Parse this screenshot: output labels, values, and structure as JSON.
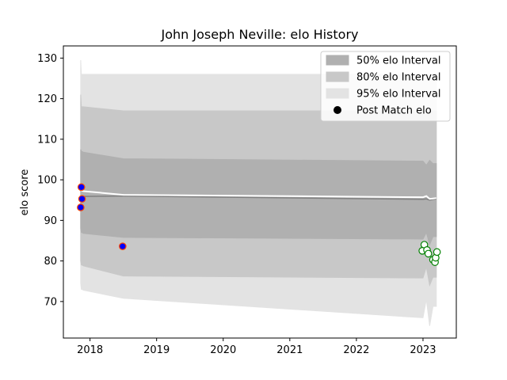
{
  "chart_data": {
    "type": "line",
    "title": "John Joseph Neville: elo History",
    "xlabel": "",
    "ylabel": "elo score",
    "xlim": [
      2017.6,
      2023.5
    ],
    "ylim": [
      61,
      133
    ],
    "x_ticks": [
      2018,
      2019,
      2020,
      2021,
      2022,
      2023
    ],
    "x_tick_labels": [
      "2018",
      "2019",
      "2020",
      "2021",
      "2022",
      "2023"
    ],
    "y_ticks": [
      70,
      80,
      90,
      100,
      110,
      120,
      130
    ],
    "y_tick_labels": [
      "70",
      "80",
      "90",
      "100",
      "110",
      "120",
      "130"
    ],
    "grid": false,
    "legend_position": "top-right",
    "legend": [
      {
        "label": "50% elo Interval",
        "kind": "band",
        "color": "#b0b0b0"
      },
      {
        "label": "80% elo Interval",
        "kind": "band",
        "color": "#c8c8c8"
      },
      {
        "label": "95% elo Interval",
        "kind": "band",
        "color": "#e3e3e3"
      },
      {
        "label": "Post Match elo",
        "kind": "marker",
        "color": "#000000"
      }
    ],
    "band_x": [
      2017.86,
      2017.87,
      2017.88,
      2017.9,
      2018.5,
      2023.0,
      2023.05,
      2023.1,
      2023.15,
      2023.2
    ],
    "band_95": {
      "upper": [
        129.5,
        126.0,
        126.0,
        126.0,
        126.0,
        126.0,
        126.0,
        126.0,
        126.0,
        126.0
      ],
      "lower": [
        74.5,
        73.0,
        73.0,
        72.8,
        70.8,
        66.0,
        70.5,
        64.0,
        68.8,
        68.8
      ]
    },
    "band_80": {
      "upper": [
        121.0,
        118.0,
        118.0,
        118.0,
        117.0,
        117.0,
        117.0,
        117.0,
        117.0,
        117.0
      ],
      "lower": [
        80.0,
        79.0,
        79.0,
        78.8,
        76.3,
        75.8,
        78.5,
        74.0,
        76.0,
        76.0
      ]
    },
    "band_50": {
      "upper": [
        107.5,
        107.0,
        107.0,
        106.8,
        105.2,
        104.6,
        103.6,
        104.8,
        104.0,
        104.0
      ],
      "lower": [
        88.0,
        87.0,
        87.0,
        86.8,
        85.8,
        85.4,
        87.0,
        84.0,
        86.0,
        86.0
      ]
    },
    "mean_line": {
      "color": "#ffffff",
      "x": [
        2017.86,
        2017.88,
        2017.9,
        2018.5,
        2023.0,
        2023.05,
        2023.1,
        2023.15,
        2023.2
      ],
      "y": [
        97.5,
        97.3,
        97.2,
        96.3,
        95.7,
        96.0,
        95.3,
        95.4,
        95.5
      ]
    },
    "median_line": {
      "color": "#808080",
      "x": [
        2017.86,
        2017.88,
        2017.9,
        2018.5,
        2023.0,
        2023.05,
        2023.1,
        2023.15,
        2023.2
      ],
      "y": [
        95.8,
        95.9,
        95.9,
        96.0,
        95.2,
        95.3,
        95.0,
        95.2,
        95.3
      ]
    },
    "series": [
      {
        "marker_fill": "#0000ff",
        "marker_edge": "#ff4500",
        "points": [
          {
            "x": 2017.87,
            "y": 98.2
          },
          {
            "x": 2017.88,
            "y": 95.3
          },
          {
            "x": 2017.86,
            "y": 93.2
          },
          {
            "x": 2018.49,
            "y": 83.6
          }
        ]
      },
      {
        "marker_fill": "#ffffff",
        "marker_edge": "#008000",
        "points": [
          {
            "x": 2023.02,
            "y": 84.0
          },
          {
            "x": 2022.99,
            "y": 82.5
          },
          {
            "x": 2023.06,
            "y": 82.7
          },
          {
            "x": 2023.08,
            "y": 81.8
          },
          {
            "x": 2023.15,
            "y": 80.3
          },
          {
            "x": 2023.18,
            "y": 79.7
          },
          {
            "x": 2023.19,
            "y": 80.8
          },
          {
            "x": 2023.21,
            "y": 82.2
          }
        ]
      }
    ]
  }
}
